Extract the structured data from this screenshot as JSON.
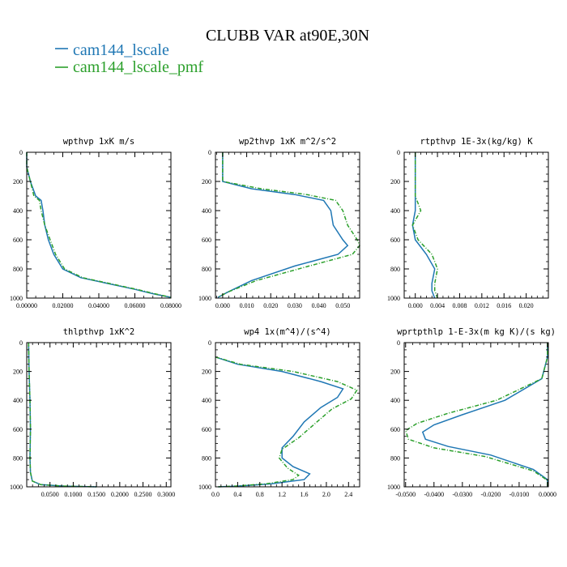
{
  "figure": {
    "title": "CLUBB VAR at90E,30N",
    "legend": [
      {
        "name": "cam144_lscale",
        "color": "#1f77b4",
        "style": "solid"
      },
      {
        "name": "cam144_lscale_pmf",
        "color": "#2ca02c",
        "style": "dashed"
      }
    ]
  },
  "chart_data": [
    {
      "type": "line",
      "title": "wpthvp  1xK m/s",
      "xlim": [
        0,
        0.08
      ],
      "ylim": [
        1000,
        0
      ],
      "xticks": [
        "0.00000",
        "0.02000",
        "0.04000",
        "0.06000",
        "0.08000"
      ],
      "xtick_values": [
        0,
        0.02,
        0.04,
        0.06,
        0.08
      ],
      "yticks": [
        "0",
        "200",
        "400",
        "600",
        "800",
        "1000"
      ],
      "series": [
        {
          "name": "cam144_lscale",
          "x": [
            0.0,
            0.0,
            0.002,
            0.005,
            0.008,
            0.009,
            0.01,
            0.012,
            0.015,
            0.02,
            0.03,
            0.045,
            0.06,
            0.07,
            0.08
          ],
          "y": [
            0,
            100,
            200,
            300,
            330,
            400,
            500,
            600,
            700,
            800,
            860,
            900,
            940,
            970,
            995
          ]
        },
        {
          "name": "cam144_lscale_pmf",
          "x": [
            0.0,
            0.0,
            0.002,
            0.004,
            0.007,
            0.008,
            0.01,
            0.013,
            0.016,
            0.021,
            0.031,
            0.046,
            0.061,
            0.071,
            0.08
          ],
          "y": [
            0,
            100,
            200,
            300,
            330,
            400,
            500,
            600,
            700,
            800,
            860,
            900,
            940,
            970,
            995
          ]
        }
      ]
    },
    {
      "type": "line",
      "title": "wp2thvp  1xK m^2/s^2",
      "xlim": [
        -0.003,
        0.057
      ],
      "ylim": [
        1000,
        0
      ],
      "xticks": [
        "0.000",
        "0.010",
        "0.020",
        "0.030",
        "0.040",
        "0.050"
      ],
      "xtick_values": [
        0,
        0.01,
        0.02,
        0.03,
        0.04,
        0.05
      ],
      "yticks": [
        "0",
        "200",
        "400",
        "600",
        "800",
        "1000"
      ],
      "series": [
        {
          "name": "cam144_lscale",
          "x": [
            0.0,
            0.0,
            0.0,
            0.012,
            0.03,
            0.042,
            0.045,
            0.046,
            0.05,
            0.052,
            0.048,
            0.03,
            0.012,
            0.002,
            -0.002
          ],
          "y": [
            0,
            100,
            200,
            250,
            290,
            330,
            400,
            500,
            600,
            640,
            700,
            780,
            880,
            960,
            995
          ]
        },
        {
          "name": "cam144_lscale_pmf",
          "x": [
            0.0,
            0.0,
            0.0,
            0.016,
            0.035,
            0.047,
            0.05,
            0.052,
            0.056,
            0.057,
            0.054,
            0.036,
            0.014,
            0.002,
            -0.002
          ],
          "y": [
            0,
            100,
            200,
            250,
            290,
            330,
            400,
            500,
            600,
            640,
            700,
            780,
            880,
            960,
            995
          ]
        }
      ]
    },
    {
      "type": "line",
      "title": "rtpthvp  1E-3x(kg/kg) K",
      "xlim": [
        -0.002,
        0.024
      ],
      "ylim": [
        1000,
        0
      ],
      "xticks": [
        "0.000",
        "0.004",
        "0.008",
        "0.012",
        "0.016",
        "0.020"
      ],
      "xtick_values": [
        0,
        0.004,
        0.008,
        0.012,
        0.016,
        0.02
      ],
      "yticks": [
        "0",
        "200",
        "400",
        "600",
        "800",
        "1000"
      ],
      "series": [
        {
          "name": "cam144_lscale",
          "x": [
            0.0,
            0.0,
            0.0,
            0.0,
            0.0,
            -0.0005,
            0.0,
            0.002,
            0.0035,
            0.003,
            0.003,
            0.0035
          ],
          "y": [
            0,
            100,
            200,
            300,
            400,
            500,
            600,
            700,
            800,
            900,
            950,
            1000
          ]
        },
        {
          "name": "cam144_lscale_pmf",
          "x": [
            0.0,
            0.0,
            0.0,
            0.0,
            0.001,
            -0.0005,
            0.0005,
            0.003,
            0.004,
            0.0035,
            0.0035,
            0.004
          ],
          "y": [
            0,
            100,
            200,
            300,
            400,
            500,
            600,
            700,
            800,
            900,
            950,
            1000
          ]
        }
      ]
    },
    {
      "type": "line",
      "title": "thlpthvp  1xK^2",
      "xlim": [
        0,
        0.31
      ],
      "ylim": [
        1000,
        0
      ],
      "xticks": [
        "0.0500",
        "0.1000",
        "0.1500",
        "0.2000",
        "0.2500",
        "0.3000"
      ],
      "xtick_values": [
        0.05,
        0.1,
        0.15,
        0.2,
        0.25,
        0.3
      ],
      "yticks": [
        "0",
        "200",
        "400",
        "600",
        "800",
        "1000"
      ],
      "series": [
        {
          "name": "cam144_lscale",
          "x": [
            0.004,
            0.005,
            0.007,
            0.008,
            0.007,
            0.008,
            0.012,
            0.03,
            0.08,
            0.15
          ],
          "y": [
            0,
            200,
            400,
            600,
            800,
            900,
            960,
            985,
            995,
            1000
          ]
        },
        {
          "name": "cam144_lscale_pmf",
          "x": [
            0.004,
            0.005,
            0.007,
            0.008,
            0.007,
            0.008,
            0.012,
            0.03,
            0.08,
            0.15
          ],
          "y": [
            0,
            200,
            400,
            600,
            800,
            900,
            960,
            985,
            995,
            1000
          ]
        }
      ]
    },
    {
      "type": "line",
      "title": "wp4  1x(m^4)/(s^4)",
      "xlim": [
        0,
        2.6
      ],
      "ylim": [
        1000,
        0
      ],
      "xticks": [
        "0.0",
        "0.4",
        "0.8",
        "1.2",
        "1.6",
        "2.0",
        "2.4"
      ],
      "xtick_values": [
        0,
        0.4,
        0.8,
        1.2,
        1.6,
        2.0,
        2.4
      ],
      "yticks": [
        "0",
        "200",
        "400",
        "600",
        "800",
        "1000"
      ],
      "series": [
        {
          "name": "cam144_lscale",
          "x": [
            0.0,
            0.4,
            1.2,
            1.9,
            2.3,
            2.2,
            1.9,
            1.6,
            1.4,
            1.2,
            1.2,
            1.4,
            1.7,
            1.6,
            1.0,
            0.4,
            0.05
          ],
          "y": [
            100,
            150,
            200,
            270,
            320,
            380,
            450,
            550,
            650,
            730,
            800,
            860,
            910,
            950,
            980,
            995,
            1000
          ]
        },
        {
          "name": "cam144_lscale_pmf",
          "x": [
            0.0,
            0.45,
            1.4,
            2.2,
            2.55,
            2.45,
            2.1,
            1.8,
            1.5,
            1.2,
            1.15,
            1.3,
            1.5,
            1.4,
            0.9,
            0.35,
            0.05
          ],
          "y": [
            100,
            150,
            200,
            270,
            330,
            390,
            460,
            560,
            660,
            740,
            800,
            870,
            920,
            950,
            980,
            995,
            1000
          ]
        }
      ]
    },
    {
      "type": "line",
      "title": "wprtpthlp  1-E-3x(m kg K)/(s kg)",
      "xlim": [
        -0.0505,
        0.0003
      ],
      "ylim": [
        1000,
        0
      ],
      "xticks": [
        "-0.0500",
        "-0.0400",
        "-0.0300",
        "-0.0200",
        "-0.0100",
        "0.0000"
      ],
      "xtick_values": [
        -0.05,
        -0.04,
        -0.03,
        -0.02,
        -0.01,
        0
      ],
      "yticks": [
        "0",
        "200",
        "400",
        "600",
        "800",
        "1000"
      ],
      "series": [
        {
          "name": "cam144_lscale",
          "x": [
            0.0,
            0.0,
            -0.002,
            -0.015,
            -0.03,
            -0.04,
            -0.044,
            -0.043,
            -0.035,
            -0.02,
            -0.005,
            0.0,
            0.0
          ],
          "y": [
            0,
            100,
            250,
            400,
            500,
            570,
            620,
            670,
            720,
            780,
            880,
            950,
            1000
          ]
        },
        {
          "name": "cam144_lscale_pmf",
          "x": [
            0.0,
            0.0,
            -0.002,
            -0.018,
            -0.035,
            -0.046,
            -0.05,
            -0.049,
            -0.04,
            -0.022,
            -0.005,
            0.0,
            0.0
          ],
          "y": [
            0,
            100,
            250,
            400,
            490,
            560,
            610,
            670,
            730,
            790,
            890,
            955,
            1000
          ]
        }
      ]
    }
  ]
}
